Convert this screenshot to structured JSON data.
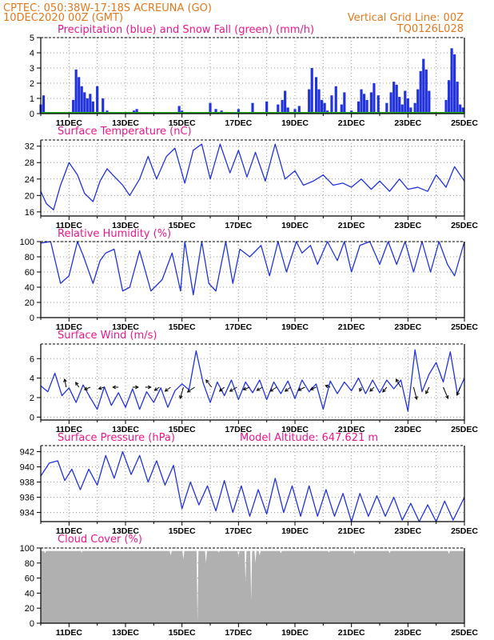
{
  "header": {
    "line1_left": "CPTEC:   050:38W-17:18S   ACREUNA (GO)",
    "line2_left": "10DEC2020 00Z (GMT)",
    "line2_right": "Vertical Grid Line: 00Z",
    "line3_right": "TQ0126L028"
  },
  "colors": {
    "header": "#e07a1f",
    "title": "#e8188c",
    "series": "#2233dd",
    "snow": "#22aa22",
    "cloud": "#b0b0b0",
    "grid": "#999999"
  },
  "x_labels": [
    "11DEC",
    "13DEC",
    "15DEC",
    "17DEC",
    "19DEC",
    "21DEC",
    "23DEC",
    "25DEC"
  ],
  "chart_data": [
    {
      "type": "bar",
      "title": "Precipitation (blue) and Snow Fall (green) (mm/h)",
      "xlim": [
        0,
        15
      ],
      "ylim": [
        0,
        5
      ],
      "yticks": [
        0,
        1,
        2,
        3,
        4,
        5
      ],
      "series": [
        {
          "name": "Precipitation",
          "x": [
            0.0,
            0.1,
            1.15,
            1.25,
            1.35,
            1.45,
            1.55,
            1.65,
            1.75,
            1.85,
            2.0,
            2.2,
            2.35,
            3.3,
            3.4,
            4.9,
            5.0,
            6.0,
            6.2,
            6.4,
            7.0,
            7.5,
            8.0,
            8.4,
            8.55,
            8.65,
            8.75,
            9.0,
            9.15,
            9.5,
            9.6,
            9.75,
            9.85,
            9.95,
            10.05,
            10.15,
            10.3,
            10.45,
            10.65,
            10.75,
            11.0,
            11.25,
            11.35,
            11.45,
            11.55,
            11.7,
            11.8,
            11.95,
            12.25,
            12.4,
            12.5,
            12.6,
            12.7,
            12.8,
            12.9,
            13.0,
            13.1,
            13.25,
            13.35,
            13.45,
            13.55,
            13.65,
            13.75,
            14.35,
            14.45,
            14.55,
            14.65,
            14.75,
            14.85,
            14.95
          ],
          "values": [
            0.6,
            1.2,
            0.9,
            2.9,
            2.4,
            1.8,
            1.4,
            1.0,
            1.3,
            0.8,
            1.8,
            1.0,
            0.2,
            0.2,
            0.3,
            0.5,
            0.2,
            0.7,
            0.3,
            0.2,
            0.3,
            0.7,
            0.8,
            0.6,
            0.9,
            1.5,
            0.4,
            0.3,
            0.5,
            1.6,
            3.0,
            2.4,
            1.6,
            0.9,
            0.7,
            0.2,
            1.2,
            1.8,
            0.6,
            1.4,
            0.2,
            0.8,
            1.6,
            1.3,
            0.9,
            1.4,
            2.0,
            1.2,
            0.7,
            1.4,
            2.1,
            1.9,
            1.1,
            0.6,
            1.5,
            1.0,
            0.4,
            0.7,
            1.6,
            2.8,
            3.6,
            2.9,
            1.5,
            0.9,
            2.2,
            4.3,
            3.9,
            2.1,
            0.6,
            0.4
          ]
        },
        {
          "name": "Snow Fall",
          "x": [
            0,
            15
          ],
          "values": [
            0,
            0
          ]
        }
      ]
    },
    {
      "type": "line",
      "title": "Surface Temperature (nC)",
      "xlim": [
        0,
        15
      ],
      "ylim": [
        15,
        33.5
      ],
      "yticks": [
        16,
        20,
        24,
        28,
        32
      ],
      "x": [
        0,
        0.2,
        0.45,
        0.7,
        1.0,
        1.3,
        1.55,
        1.85,
        2.1,
        2.35,
        2.55,
        2.9,
        3.15,
        3.5,
        3.8,
        4.1,
        4.45,
        4.75,
        5.1,
        5.4,
        5.7,
        6.0,
        6.35,
        6.7,
        7.0,
        7.3,
        7.6,
        7.95,
        8.3,
        8.65,
        9.0,
        9.3,
        9.65,
        10.0,
        10.35,
        10.7,
        11.0,
        11.35,
        11.7,
        12.0,
        12.35,
        12.7,
        13.0,
        13.35,
        13.7,
        14.0,
        14.35,
        14.65,
        15.0
      ],
      "values": [
        21.0,
        18.0,
        16.5,
        22.5,
        28.0,
        25.0,
        20.5,
        18.5,
        23.5,
        26.5,
        25.0,
        22.5,
        20.0,
        24.0,
        29.5,
        24.0,
        29.5,
        31.5,
        23.0,
        31.0,
        32.5,
        24.0,
        32.5,
        25.5,
        31.0,
        24.5,
        30.5,
        23.5,
        32.5,
        24.0,
        26.0,
        22.5,
        23.5,
        25.0,
        22.5,
        23.0,
        22.0,
        24.0,
        21.5,
        23.5,
        21.0,
        24.0,
        21.5,
        22.0,
        21.0,
        25.0,
        22.0,
        27.0,
        23.5
      ]
    },
    {
      "type": "line",
      "title": "Relative Humidity (%)",
      "xlim": [
        0,
        15
      ],
      "ylim": [
        0,
        100
      ],
      "yticks": [
        0,
        20,
        40,
        60,
        80,
        100
      ],
      "x": [
        0,
        0.35,
        0.7,
        1.0,
        1.3,
        1.5,
        1.85,
        2.1,
        2.3,
        2.6,
        2.9,
        3.15,
        3.5,
        3.9,
        4.3,
        4.65,
        4.95,
        5.1,
        5.4,
        5.7,
        5.95,
        6.2,
        6.55,
        6.8,
        7.05,
        7.4,
        7.8,
        8.1,
        8.4,
        8.7,
        9.05,
        9.25,
        9.55,
        9.8,
        10.15,
        10.5,
        10.75,
        11.0,
        11.3,
        11.65,
        12.0,
        12.3,
        12.6,
        12.9,
        13.2,
        13.5,
        13.8,
        14.1,
        14.4,
        14.65,
        15.0
      ],
      "values": [
        98,
        100,
        45,
        55,
        100,
        82,
        45,
        75,
        85,
        90,
        35,
        40,
        88,
        35,
        50,
        85,
        35,
        100,
        30,
        100,
        45,
        35,
        100,
        45,
        90,
        80,
        95,
        55,
        100,
        60,
        100,
        85,
        95,
        70,
        100,
        75,
        100,
        60,
        95,
        100,
        70,
        100,
        70,
        100,
        60,
        100,
        60,
        100,
        70,
        55,
        100
      ]
    },
    {
      "type": "line",
      "title": "Surface Wind (m/s)",
      "xlim": [
        0,
        15
      ],
      "ylim": [
        -0.3,
        7.5
      ],
      "yticks": [
        0,
        2,
        4,
        6
      ],
      "x": [
        0,
        0.25,
        0.5,
        0.75,
        1.0,
        1.25,
        1.5,
        1.75,
        2.0,
        2.25,
        2.5,
        2.75,
        3.0,
        3.25,
        3.5,
        3.75,
        4.0,
        4.25,
        4.5,
        4.75,
        5.0,
        5.25,
        5.5,
        5.75,
        6.0,
        6.25,
        6.5,
        6.75,
        7.0,
        7.25,
        7.5,
        7.75,
        8.0,
        8.25,
        8.5,
        8.75,
        9.0,
        9.25,
        9.5,
        9.75,
        10.0,
        10.25,
        10.5,
        10.75,
        11.0,
        11.25,
        11.5,
        11.75,
        12.0,
        12.25,
        12.5,
        12.75,
        13.0,
        13.25,
        13.5,
        13.75,
        14.0,
        14.25,
        14.5,
        14.75,
        15.0
      ],
      "values": [
        3.2,
        2.6,
        4.5,
        2.2,
        3.0,
        1.5,
        3.3,
        2.0,
        0.8,
        3.1,
        1.2,
        2.5,
        1.0,
        2.9,
        0.8,
        2.6,
        1.5,
        3.0,
        1.0,
        2.7,
        3.4,
        2.8,
        6.8,
        3.5,
        1.5,
        3.6,
        2.2,
        3.8,
        1.8,
        3.6,
        2.5,
        3.8,
        1.8,
        3.6,
        2.4,
        3.7,
        1.9,
        3.8,
        2.6,
        3.4,
        0.8,
        3.7,
        2.4,
        3.6,
        2.7,
        4.0,
        2.4,
        3.8,
        2.5,
        3.8,
        2.9,
        3.8,
        0.6,
        6.9,
        2.6,
        4.4,
        5.6,
        3.6,
        6.7,
        2.4,
        4.0
      ],
      "arrows": [
        {
          "x": 0.9,
          "dx": -2,
          "dy": -10
        },
        {
          "x": 1.35,
          "dx": -4,
          "dy": -6
        },
        {
          "x": 1.75,
          "dx": -7,
          "dy": 3
        },
        {
          "x": 2.25,
          "dx": -7,
          "dy": 2
        },
        {
          "x": 2.75,
          "dx": -7,
          "dy": 0
        },
        {
          "x": 3.25,
          "dx": 7,
          "dy": 0
        },
        {
          "x": 3.7,
          "dx": 7,
          "dy": 0
        },
        {
          "x": 4.2,
          "dx": -6,
          "dy": 4
        },
        {
          "x": 4.6,
          "dx": -7,
          "dy": 5
        },
        {
          "x": 5.05,
          "dx": -4,
          "dy": 14
        },
        {
          "x": 5.45,
          "dx": -9,
          "dy": 6
        },
        {
          "x": 6.05,
          "dx": -7,
          "dy": -9
        },
        {
          "x": 6.5,
          "dx": -6,
          "dy": 5
        },
        {
          "x": 6.95,
          "dx": -9,
          "dy": 5
        },
        {
          "x": 7.4,
          "dx": -8,
          "dy": 3
        },
        {
          "x": 7.85,
          "dx": -7,
          "dy": 4
        },
        {
          "x": 8.35,
          "dx": -8,
          "dy": 5
        },
        {
          "x": 8.85,
          "dx": -7,
          "dy": 5
        },
        {
          "x": 9.35,
          "dx": -8,
          "dy": 4
        },
        {
          "x": 9.75,
          "dx": -7,
          "dy": 3
        },
        {
          "x": 10.25,
          "dx": -6,
          "dy": -2
        },
        {
          "x": 11.35,
          "dx": -2,
          "dy": 5
        },
        {
          "x": 11.8,
          "dx": -5,
          "dy": 5
        },
        {
          "x": 12.25,
          "dx": -5,
          "dy": 6
        },
        {
          "x": 12.75,
          "dx": -6,
          "dy": -10
        },
        {
          "x": 13.2,
          "dx": 4,
          "dy": 15
        },
        {
          "x": 13.75,
          "dx": -4,
          "dy": 8
        },
        {
          "x": 14.25,
          "dx": 6,
          "dy": 14
        },
        {
          "x": 14.85,
          "dx": -4,
          "dy": 10
        }
      ]
    },
    {
      "type": "line",
      "title": "Surface Pressure (hPa)",
      "subtitle": "Model Altitude: 647.621  m",
      "xlim": [
        0,
        15
      ],
      "ylim": [
        932.8,
        942.8
      ],
      "yticks": [
        934,
        936,
        938,
        940,
        942
      ],
      "x": [
        0,
        0.3,
        0.6,
        0.85,
        1.1,
        1.4,
        1.7,
        2.0,
        2.3,
        2.6,
        2.9,
        3.2,
        3.5,
        3.8,
        4.1,
        4.4,
        4.7,
        5.0,
        5.3,
        5.6,
        5.9,
        6.2,
        6.5,
        6.8,
        7.1,
        7.4,
        7.7,
        8.0,
        8.3,
        8.6,
        8.9,
        9.2,
        9.5,
        9.8,
        10.1,
        10.4,
        10.7,
        11.0,
        11.3,
        11.6,
        11.9,
        12.2,
        12.5,
        12.8,
        13.1,
        13.4,
        13.7,
        14.0,
        14.3,
        14.6,
        15.0
      ],
      "values": [
        938.8,
        940.5,
        940.8,
        938.2,
        939.7,
        937.0,
        939.7,
        937.6,
        941.5,
        938.5,
        942.0,
        939.0,
        941.5,
        938.0,
        940.8,
        937.6,
        940.2,
        934.5,
        938.0,
        935.0,
        937.5,
        934.2,
        938.2,
        934.0,
        937.5,
        933.5,
        937.0,
        933.8,
        938.5,
        934.0,
        937.5,
        933.5,
        937.5,
        933.5,
        937.0,
        933.5,
        936.5,
        932.8,
        936.5,
        933.5,
        936.2,
        933.5,
        936.0,
        933.0,
        935.2,
        932.8,
        935.0,
        932.8,
        935.5,
        933.0,
        936.0
      ]
    },
    {
      "type": "area",
      "title": "Cloud Cover (%)",
      "xlim": [
        0,
        15
      ],
      "ylim": [
        0,
        100
      ],
      "yticks": [
        0,
        20,
        40,
        60,
        80,
        100
      ],
      "base": 96,
      "dips": [
        {
          "x": 0.15,
          "v": 93
        },
        {
          "x": 1.45,
          "v": 94
        },
        {
          "x": 4.6,
          "v": 90
        },
        {
          "x": 5.05,
          "v": 85
        },
        {
          "x": 5.55,
          "v": 1
        },
        {
          "x": 5.85,
          "v": 80
        },
        {
          "x": 6.3,
          "v": 94
        },
        {
          "x": 7.0,
          "v": 88
        },
        {
          "x": 7.25,
          "v": 55
        },
        {
          "x": 7.45,
          "v": 30
        },
        {
          "x": 7.6,
          "v": 80
        },
        {
          "x": 7.75,
          "v": 90
        },
        {
          "x": 8.5,
          "v": 93
        },
        {
          "x": 10.2,
          "v": 94
        },
        {
          "x": 11.1,
          "v": 92
        },
        {
          "x": 12.35,
          "v": 93
        },
        {
          "x": 14.45,
          "v": 92
        }
      ]
    }
  ]
}
